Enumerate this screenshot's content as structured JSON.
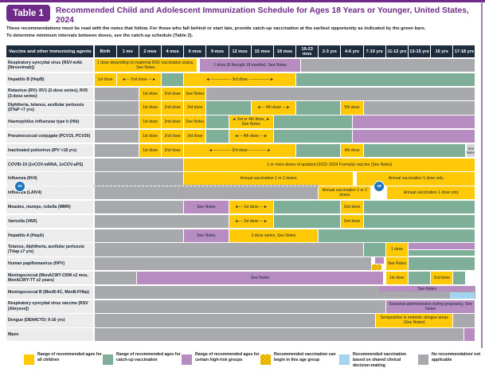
{
  "page": {
    "badge": "Table 1",
    "title": "Recommended Child and Adolescent Immunization Schedule for Ages 18 Years or Younger, United States, 2024",
    "intro_line1": "These recommendations must be read with the notes that follow. For those who fall behind or start late, provide catch-up vaccination at the earliest opportunity as indicated by the green bars.",
    "intro_line2": "To determine minimum intervals between doses, see the catch-up schedule (Table 2).",
    "or_label": "or"
  },
  "colors": {
    "accent_purple": "#6f2b8a",
    "header_navy": "#1e2d3d",
    "yellow_all_children": "#FFC907",
    "green_catch_up": "#7FAF99",
    "purple_high_risk": "#B78CC0",
    "gray_no_recommendation": "#A7A9AC",
    "blue_shared_decision": "#A5D4F2",
    "checkered_can_begin": "#FFC907/#d7a602",
    "or_badge_blue": "#1C75BC"
  },
  "legend": [
    {
      "color": "y",
      "label": "Range of recommended ages for all children"
    },
    {
      "color": "g",
      "label": "Range of recommended ages for catch-up vaccination"
    },
    {
      "color": "p",
      "label": "Range of recommended ages for certain high-risk groups"
    },
    {
      "color": "ch",
      "label": "Recommended vaccination can begin in this age group"
    },
    {
      "color": "b",
      "label": "Recommended vaccination based on shared clinical decision-making"
    },
    {
      "color": "n",
      "label": "No recommendation/ not applicable"
    }
  ],
  "chart_data": {
    "type": "table",
    "header_first_cell": "Vaccine and other immunizing agents",
    "columns": [
      "Birth",
      "1 mo",
      "2 mos",
      "4 mos",
      "6 mos",
      "9 mos",
      "12 mos",
      "15 mos",
      "18 mos",
      "19-23 mos",
      "2-3 yrs",
      "4-6 yrs",
      "7-10 yrs",
      "11-12 yrs",
      "13-15 yrs",
      "16 yrs",
      "17-18 yrs"
    ],
    "color_key": {
      "y": "recommended all children",
      "g": "catch-up",
      "p": "high-risk",
      "n": "no recommendation",
      "b": "shared clinical decision-making",
      "ch": "can begin in this age group",
      "sn": "see notes (gray)"
    },
    "rows": [
      {
        "label": [
          {
            "t": "Respiratory syncytial virus (RSV-mAb [Nirsevimab])"
          }
        ],
        "bars": [
          {
            "s": 0,
            "e": 4.6,
            "c": "y",
            "t": "1 dose depending on maternal RSV vaccination status, See Notes"
          },
          {
            "s": 4.72,
            "e": 9.2,
            "c": "p",
            "t": "1 dose (8 through 19 months), See Notes"
          },
          {
            "s": 9.2,
            "e": 17,
            "c": "n"
          }
        ]
      },
      {
        "label": [
          {
            "t": "Hepatitis B (HepB)"
          }
        ],
        "bars": [
          {
            "s": 0,
            "e": 1,
            "c": "y",
            "t": "1st dose"
          },
          {
            "s": 1,
            "e": 3,
            "c": "y",
            "t": "◄--- 2nd dose ---►"
          },
          {
            "s": 3,
            "e": 4,
            "c": "g"
          },
          {
            "s": 4,
            "e": 9,
            "c": "y",
            "t": "◄---------------- 3rd dose ----------------►"
          },
          {
            "s": 9,
            "e": 17,
            "c": "g"
          }
        ]
      },
      {
        "label": [
          {
            "t": "Rotavirus (RV): RV1 (2-dose series), RV5 (3-dose series)"
          }
        ],
        "bars": [
          {
            "s": 0,
            "e": 2,
            "c": "n"
          },
          {
            "s": 2,
            "e": 3,
            "c": "y",
            "t": "1st dose"
          },
          {
            "s": 3,
            "e": 4,
            "c": "y",
            "t": "2nd dose"
          },
          {
            "s": 4,
            "e": 5,
            "c": "y",
            "t": "See Notes"
          },
          {
            "s": 5,
            "e": 17,
            "c": "n"
          }
        ]
      },
      {
        "label": [
          {
            "t": "Diphtheria, tetanus, acellular pertussis (DTaP <7 yrs)"
          }
        ],
        "bars": [
          {
            "s": 0,
            "e": 2,
            "c": "n"
          },
          {
            "s": 2,
            "e": 3,
            "c": "y",
            "t": "1st dose"
          },
          {
            "s": 3,
            "e": 4,
            "c": "y",
            "t": "2nd dose"
          },
          {
            "s": 4,
            "e": 5,
            "c": "y",
            "t": "3rd dose"
          },
          {
            "s": 5,
            "e": 7,
            "c": "g"
          },
          {
            "s": 7,
            "e": 9,
            "c": "y",
            "t": "◄--- 4th dose ---►"
          },
          {
            "s": 9,
            "e": 11,
            "c": "g"
          },
          {
            "s": 11,
            "e": 12,
            "c": "y",
            "t": "5th dose"
          },
          {
            "s": 12,
            "e": 17,
            "c": "n"
          }
        ]
      },
      {
        "label": [
          {
            "t": "Haemophilus influenzae",
            "i": true
          },
          {
            "t": " type b (Hib)"
          }
        ],
        "bars": [
          {
            "s": 0,
            "e": 2,
            "c": "n"
          },
          {
            "s": 2,
            "e": 3,
            "c": "y",
            "t": "1st dose"
          },
          {
            "s": 3,
            "e": 4,
            "c": "y",
            "t": "2nd dose"
          },
          {
            "s": 4,
            "e": 5,
            "c": "y",
            "t": "See Notes"
          },
          {
            "s": 5,
            "e": 6,
            "c": "g"
          },
          {
            "s": 6,
            "e": 8,
            "c": "y",
            "t": "◄ 3rd or 4th dose, ►\nSee Notes"
          },
          {
            "s": 8,
            "e": 11.5,
            "c": "g"
          },
          {
            "s": 11.5,
            "e": 17,
            "c": "p"
          }
        ]
      },
      {
        "label": [
          {
            "t": "Pneumococcal conjugate (PCV15, PCV20)"
          }
        ],
        "bars": [
          {
            "s": 0,
            "e": 2,
            "c": "n"
          },
          {
            "s": 2,
            "e": 3,
            "c": "y",
            "t": "1st dose"
          },
          {
            "s": 3,
            "e": 4,
            "c": "y",
            "t": "2nd dose"
          },
          {
            "s": 4,
            "e": 5,
            "c": "y",
            "t": "3rd dose"
          },
          {
            "s": 5,
            "e": 6,
            "c": "g"
          },
          {
            "s": 6,
            "e": 8,
            "c": "y",
            "t": "◄--- 4th dose ---►"
          },
          {
            "s": 8,
            "e": 11.5,
            "c": "g"
          },
          {
            "s": 11.5,
            "e": 17,
            "c": "p"
          }
        ]
      },
      {
        "label": [
          {
            "t": "Inactivated poliovirus (IPV <18 yrs)"
          }
        ],
        "bars": [
          {
            "s": 0,
            "e": 2,
            "c": "n"
          },
          {
            "s": 2,
            "e": 3,
            "c": "y",
            "t": "1st dose"
          },
          {
            "s": 3,
            "e": 4,
            "c": "y",
            "t": "2nd dose"
          },
          {
            "s": 4,
            "e": 9,
            "c": "y",
            "t": "◄-------------- 3rd dose --------------►"
          },
          {
            "s": 9,
            "e": 11,
            "c": "g"
          },
          {
            "s": 11,
            "e": 12,
            "c": "y",
            "t": "4th dose"
          },
          {
            "s": 12,
            "e": 16.55,
            "c": "g"
          },
          {
            "s": 16.6,
            "e": 17,
            "c": "sn",
            "t": "See Notes"
          }
        ]
      },
      {
        "label": [
          {
            "t": "COVID-19 (1vCOV-mRNA, 1vCOV-aPS)"
          }
        ],
        "bars": [
          {
            "s": 0,
            "e": 4,
            "c": "n"
          },
          {
            "s": 4,
            "e": 17,
            "c": "y",
            "t": "1 or more doses of updated (2023–2024 Formula) vaccine (See Notes)"
          }
        ]
      },
      {
        "label": [
          {
            "t": "Influenza (IIV4)"
          }
        ],
        "bars": [
          {
            "s": 0,
            "e": 4,
            "c": "n"
          },
          {
            "s": 4,
            "e": 11.55,
            "c": "y",
            "t": "Annual vaccination 1 or 2 doses"
          },
          {
            "s": 11.7,
            "e": 17,
            "c": "y",
            "t": "Annual vaccination 1 dose only"
          }
        ]
      },
      {
        "label": [
          {
            "t": "Influenza (LAIV4)"
          }
        ],
        "bars": [
          {
            "s": 0,
            "e": 10,
            "c": "n"
          },
          {
            "s": 10,
            "e": 12.35,
            "c": "y",
            "t": "Annual vaccination 1 or 2 doses"
          },
          {
            "s": 13.05,
            "e": 17,
            "c": "y",
            "t": "Annual vaccination 1 dose only"
          }
        ]
      },
      {
        "label": [
          {
            "t": "Measles, mumps, rubella (MMR)"
          }
        ],
        "bars": [
          {
            "s": 0,
            "e": 4,
            "c": "n"
          },
          {
            "s": 4,
            "e": 6,
            "c": "p",
            "t": "See Notes"
          },
          {
            "s": 6,
            "e": 8,
            "c": "y",
            "t": "◄--- 1st dose ---►"
          },
          {
            "s": 8,
            "e": 11,
            "c": "g"
          },
          {
            "s": 11,
            "e": 12,
            "c": "y",
            "t": "2nd dose"
          },
          {
            "s": 12,
            "e": 17,
            "c": "g"
          }
        ]
      },
      {
        "label": [
          {
            "t": "Varicella (VAR)"
          }
        ],
        "bars": [
          {
            "s": 0,
            "e": 6,
            "c": "n"
          },
          {
            "s": 6,
            "e": 8,
            "c": "y",
            "t": "◄--- 1st dose ---►"
          },
          {
            "s": 8,
            "e": 11,
            "c": "g"
          },
          {
            "s": 11,
            "e": 12,
            "c": "y",
            "t": "2nd dose"
          },
          {
            "s": 12,
            "e": 17,
            "c": "g"
          }
        ]
      },
      {
        "label": [
          {
            "t": "Hepatitis A (HepA)"
          }
        ],
        "bars": [
          {
            "s": 0,
            "e": 4,
            "c": "n"
          },
          {
            "s": 4,
            "e": 6,
            "c": "p",
            "t": "See Notes"
          },
          {
            "s": 6,
            "e": 10,
            "c": "y",
            "t": "2-dose series, See Notes"
          },
          {
            "s": 10,
            "e": 17,
            "c": "g"
          }
        ]
      },
      {
        "label": [
          {
            "t": "Tetanus, diphtheria, acellular pertussis (Tdap ≥7 yrs)"
          }
        ],
        "bars": [
          {
            "s": 0,
            "e": 12,
            "c": "n"
          },
          {
            "s": 12,
            "e": 13,
            "c": "g"
          },
          {
            "s": 13,
            "e": 14,
            "c": "y",
            "t": "1 dose"
          },
          {
            "s": 14,
            "e": 17,
            "c": "p",
            "half": "top"
          },
          {
            "s": 14,
            "e": 17,
            "c": "g",
            "half": "bottom"
          }
        ]
      },
      {
        "label": [
          {
            "t": "Human papillomavirus (HPV)"
          }
        ],
        "bars": [
          {
            "s": 0,
            "e": 12.38,
            "c": "n"
          },
          {
            "s": 12.5,
            "e": 12.95,
            "c": "p",
            "half": "top"
          },
          {
            "s": 12.38,
            "e": 12.82,
            "c": "ch",
            "half": "bottom"
          },
          {
            "s": 13,
            "e": 14,
            "c": "y",
            "t": "See Notes"
          },
          {
            "s": 14,
            "e": 17,
            "c": "g"
          }
        ]
      },
      {
        "label": [
          {
            "t": "Meningococcal (MenACWY-CRM ≥2 mos, MenACWY-TT ≥2 years)"
          }
        ],
        "bars": [
          {
            "s": 0,
            "e": 1.9,
            "c": "n"
          },
          {
            "s": 1.9,
            "e": 12.9,
            "c": "p",
            "t": "See Notes"
          },
          {
            "s": 13,
            "e": 14,
            "c": "y",
            "t": "1st dose"
          },
          {
            "s": 14,
            "e": 15,
            "c": "g"
          },
          {
            "s": 15,
            "e": 16,
            "c": "y",
            "t": "2nd dose"
          },
          {
            "s": 16,
            "e": 16.55,
            "c": "g"
          }
        ]
      },
      {
        "label": [
          {
            "t": "Meningococcal B (MenB-4C, MenB-FHbp)"
          }
        ],
        "bars": [
          {
            "s": 0,
            "e": 17,
            "c": "n"
          },
          {
            "s": 12.7,
            "e": 17,
            "c": "p",
            "t": "See Notes",
            "half": "top"
          },
          {
            "s": 15.85,
            "e": 17,
            "c": "b",
            "half": "bottom"
          }
        ]
      },
      {
        "label": [
          {
            "t": "Respiratory syncytial virus vaccine (RSV [Abrysvo])"
          }
        ],
        "bars": [
          {
            "s": 0,
            "e": 13,
            "c": "n"
          },
          {
            "s": 13,
            "e": 17,
            "c": "p",
            "t": "Seasonal administration during pregnancy, See Notes"
          }
        ]
      },
      {
        "label": [
          {
            "t": "Dengue (DEN4CYD; 9-16 yrs)"
          }
        ],
        "bars": [
          {
            "s": 0,
            "e": 12.55,
            "c": "n"
          },
          {
            "s": 12.55,
            "e": 16,
            "c": "y",
            "t": "Seropositive in endemic dengue areas (See Notes)"
          },
          {
            "s": 16,
            "e": 17,
            "c": "n"
          }
        ]
      },
      {
        "label": [
          {
            "t": "Mpox"
          }
        ],
        "bars": [
          {
            "s": 0,
            "e": 16.5,
            "c": "n"
          },
          {
            "s": 16.5,
            "e": 17,
            "c": "p"
          }
        ]
      }
    ]
  }
}
